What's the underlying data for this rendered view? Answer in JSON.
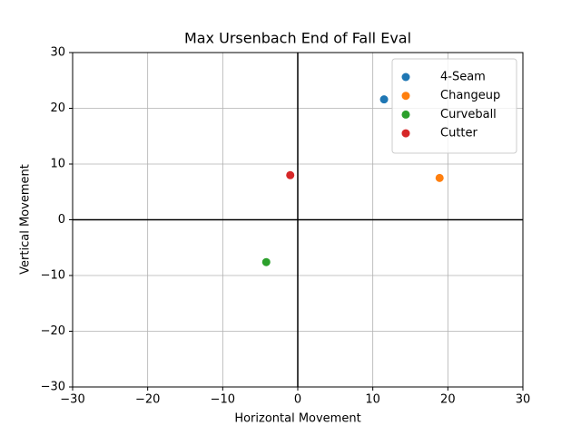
{
  "chart_data": {
    "type": "scatter",
    "title": "Max Ursenbach End of Fall Eval",
    "xlabel": "Horizontal Movement",
    "ylabel": "Vertical Movement",
    "series": [
      {
        "name": "4-Seam",
        "color": "#1f77b4",
        "x": [
          11.5
        ],
        "y": [
          21.6
        ]
      },
      {
        "name": "Changeup",
        "color": "#ff7f0e",
        "x": [
          18.9
        ],
        "y": [
          7.5
        ]
      },
      {
        "name": "Curveball",
        "color": "#2ca02c",
        "x": [
          -4.2
        ],
        "y": [
          -7.6
        ]
      },
      {
        "name": "Cutter",
        "color": "#d62728",
        "x": [
          -1.0
        ],
        "y": [
          8.0
        ]
      }
    ],
    "xlim": [
      -30,
      30
    ],
    "ylim": [
      -30,
      30
    ],
    "xticks": [
      {
        "value": -30,
        "label": "−30"
      },
      {
        "value": -20,
        "label": "−20"
      },
      {
        "value": -10,
        "label": "−10"
      },
      0,
      10,
      20,
      30
    ],
    "yticks": [
      {
        "value": -30,
        "label": "−30"
      },
      {
        "value": -20,
        "label": "−20"
      },
      {
        "value": -10,
        "label": "−10"
      },
      0,
      10,
      20,
      30
    ],
    "axhline": 0,
    "axvline": 0,
    "grid": true,
    "legend": "upper right"
  }
}
